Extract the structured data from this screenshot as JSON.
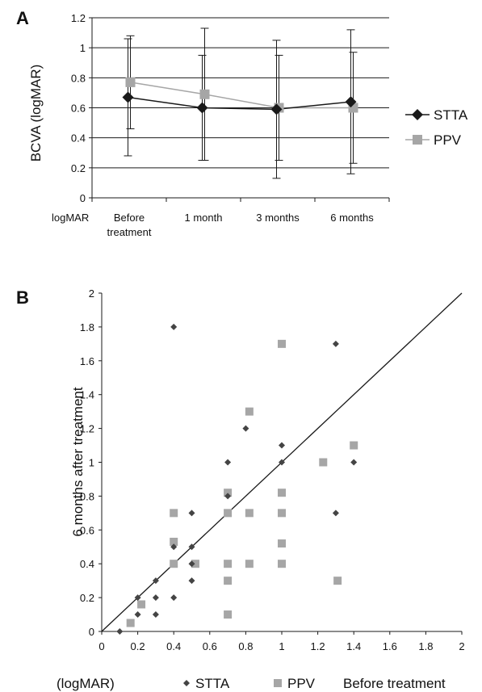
{
  "chart_data": [
    {
      "panel": "A",
      "type": "line",
      "ylabel": "BCVA (logMAR)",
      "x_corner_label": "logMAR",
      "categories": [
        [
          "Before",
          "treatment"
        ],
        [
          "1 month"
        ],
        [
          "3 months"
        ],
        [
          "6 months"
        ]
      ],
      "ylim": [
        0,
        1.2
      ],
      "yticks": [
        "0",
        "0.2",
        "0.4",
        "0.6",
        "0.8",
        "1",
        "1.2"
      ],
      "grid": true,
      "legend": "right",
      "series": [
        {
          "name": "STTA",
          "marker": "diamond",
          "color": "#1a1a1a",
          "values": [
            0.67,
            0.6,
            0.59,
            0.64
          ],
          "err": [
            0.39,
            0.35,
            0.46,
            0.48
          ]
        },
        {
          "name": "PPV",
          "marker": "square",
          "color": "#a6a6a6",
          "values": [
            0.77,
            0.69,
            0.6,
            0.6
          ],
          "err": [
            0.31,
            0.44,
            0.35,
            0.37
          ]
        }
      ]
    },
    {
      "panel": "B",
      "type": "scatter",
      "xlabel": "Before treatment",
      "x_unit_label": "(logMAR)",
      "ylabel": "6 months after treatment",
      "xlim": [
        0,
        2
      ],
      "ylim": [
        0,
        2
      ],
      "xticks": [
        "0",
        "0.2",
        "0.4",
        "0.6",
        "0.8",
        "1",
        "1.2",
        "1.4",
        "1.6",
        "1.8",
        "2"
      ],
      "yticks": [
        "0",
        "0.2",
        "0.4",
        "0.6",
        "0.8",
        "1",
        "1.2",
        "1.4",
        "1.6",
        "1.8",
        "2"
      ],
      "grid": false,
      "legend": "bottom",
      "reference_line": {
        "x": [
          0,
          2
        ],
        "y": [
          0,
          2
        ]
      },
      "series": [
        {
          "name": "STTA",
          "marker": "diamond",
          "color": "#444444",
          "points": [
            [
              0.1,
              0.0
            ],
            [
              0.2,
              0.1
            ],
            [
              0.3,
              0.1
            ],
            [
              0.3,
              0.2
            ],
            [
              0.4,
              0.2
            ],
            [
              0.3,
              0.3
            ],
            [
              0.2,
              0.2
            ],
            [
              0.5,
              0.3
            ],
            [
              0.5,
              0.4
            ],
            [
              0.5,
              0.5
            ],
            [
              0.4,
              0.5
            ],
            [
              0.5,
              0.7
            ],
            [
              0.4,
              1.8
            ],
            [
              0.7,
              0.8
            ],
            [
              0.7,
              1.0
            ],
            [
              0.8,
              1.2
            ],
            [
              1.0,
              1.0
            ],
            [
              1.0,
              1.1
            ],
            [
              1.3,
              1.7
            ],
            [
              1.3,
              0.7
            ],
            [
              1.4,
              1.0
            ]
          ]
        },
        {
          "name": "PPV",
          "marker": "square",
          "color": "#a6a6a6",
          "points": [
            [
              0.16,
              0.05
            ],
            [
              0.22,
              0.16
            ],
            [
              0.4,
              0.7
            ],
            [
              0.4,
              0.53
            ],
            [
              0.4,
              0.4
            ],
            [
              0.52,
              0.4
            ],
            [
              0.7,
              0.82
            ],
            [
              0.7,
              0.7
            ],
            [
              0.7,
              0.4
            ],
            [
              0.7,
              0.3
            ],
            [
              0.7,
              0.1
            ],
            [
              0.82,
              0.7
            ],
            [
              0.82,
              1.3
            ],
            [
              0.82,
              0.4
            ],
            [
              1.0,
              1.7
            ],
            [
              1.0,
              0.82
            ],
            [
              1.0,
              0.7
            ],
            [
              1.0,
              0.52
            ],
            [
              1.0,
              0.4
            ],
            [
              1.23,
              1.0
            ],
            [
              1.31,
              0.3
            ],
            [
              1.4,
              1.1
            ]
          ]
        }
      ]
    }
  ],
  "labels": {
    "panel_a": "A",
    "panel_b": "B",
    "legend_a": [
      "STTA",
      "PPV"
    ],
    "legend_b": [
      "STTA",
      "PPV"
    ]
  }
}
